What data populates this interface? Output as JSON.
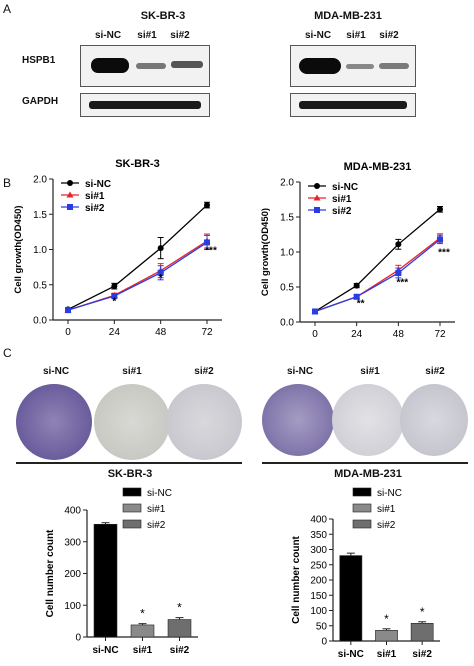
{
  "panels": {
    "a": "A",
    "b": "B",
    "c": "C"
  },
  "western_blot": {
    "blots": [
      {
        "cell_line": "SK-BR-3",
        "lanes": [
          "si-NC",
          "si#1",
          "si#2"
        ],
        "rows": [
          {
            "label": "HSPB1",
            "intensity": [
              1.0,
              0.25,
              0.35
            ]
          },
          {
            "label": "GAPDH",
            "intensity": [
              0.9,
              0.9,
              0.9
            ]
          }
        ]
      },
      {
        "cell_line": "MDA-MB-231",
        "lanes": [
          "si-NC",
          "si#1",
          "si#2"
        ],
        "rows": [
          {
            "label": "HSPB1",
            "intensity": [
              1.0,
              0.2,
              0.25
            ]
          },
          {
            "label": "GAPDH",
            "intensity": [
              0.9,
              0.9,
              0.9
            ]
          }
        ]
      }
    ]
  },
  "colony": {
    "groups": [
      {
        "cell_line": "SK-BR-3",
        "labels": [
          "si-NC",
          "si#1",
          "si#2"
        ],
        "density": [
          0.9,
          0.1,
          0.2
        ]
      },
      {
        "cell_line": "MDA-MB-231",
        "labels": [
          "si-NC",
          "si#1",
          "si#2"
        ],
        "density": [
          0.85,
          0.1,
          0.25
        ]
      }
    ]
  },
  "colors": {
    "si_nc": "#000000",
    "si1": "#e8242a",
    "si2": "#2a3de0",
    "bar_nc": "#000000",
    "bar_si1": "#8a8a8a",
    "bar_si2": "#6e6e6e",
    "stain": "#6a5b9a"
  },
  "chart_data": [
    {
      "type": "line",
      "title": "SK-BR-3",
      "xlabel": "",
      "ylabel": "Cell growth(OD450)",
      "x": [
        0,
        24,
        48,
        72
      ],
      "ylim": [
        0,
        2.0
      ],
      "yticks": [
        "0.0",
        "0.5",
        "1.0",
        "1.5",
        "2.0"
      ],
      "legend_position": "top-left",
      "series": [
        {
          "name": "si-NC",
          "values": [
            0.15,
            0.48,
            1.02,
            1.63
          ],
          "errors": [
            0.02,
            0.04,
            0.15,
            0.04
          ]
        },
        {
          "name": "si#1",
          "values": [
            0.14,
            0.35,
            0.7,
            1.12
          ],
          "errors": [
            0.02,
            0.03,
            0.1,
            0.1
          ]
        },
        {
          "name": "si#2",
          "values": [
            0.14,
            0.34,
            0.67,
            1.1
          ],
          "errors": [
            0.02,
            0.03,
            0.1,
            0.1
          ]
        }
      ],
      "annotations": [
        {
          "x": 24,
          "y": 0.22,
          "text": "*"
        },
        {
          "x": 48,
          "y": 0.55,
          "text": "*"
        },
        {
          "x": 72,
          "y": 0.94,
          "text": "***"
        }
      ]
    },
    {
      "type": "line",
      "title": "MDA-MB-231",
      "xlabel": "",
      "ylabel": "Cell growth(OD450)",
      "x": [
        0,
        24,
        48,
        72
      ],
      "ylim": [
        0,
        2.0
      ],
      "yticks": [
        "0.0",
        "0.5",
        "1.0",
        "1.5",
        "2.0"
      ],
      "legend_position": "top-left",
      "series": [
        {
          "name": "si-NC",
          "values": [
            0.15,
            0.52,
            1.11,
            1.61
          ],
          "errors": [
            0.02,
            0.03,
            0.07,
            0.04
          ]
        },
        {
          "name": "si#1",
          "values": [
            0.15,
            0.36,
            0.74,
            1.2
          ],
          "errors": [
            0.02,
            0.03,
            0.07,
            0.06
          ]
        },
        {
          "name": "si#2",
          "values": [
            0.15,
            0.36,
            0.7,
            1.18
          ],
          "errors": [
            0.02,
            0.03,
            0.07,
            0.06
          ]
        }
      ],
      "annotations": [
        {
          "x": 24,
          "y": 0.22,
          "text": "**"
        },
        {
          "x": 48,
          "y": 0.52,
          "text": "***"
        },
        {
          "x": 72,
          "y": 0.95,
          "text": "***"
        }
      ]
    },
    {
      "type": "bar",
      "title": "",
      "xlabel": "",
      "ylabel": "Cell number count",
      "categories": [
        "si-NC",
        "si#1",
        "si#2"
      ],
      "values": [
        355,
        38,
        55
      ],
      "errors": [
        5,
        4,
        6
      ],
      "ylim": [
        0,
        400
      ],
      "yticks": [
        "0",
        "100",
        "200",
        "300",
        "400"
      ],
      "legend": [
        "si-NC",
        "si#1",
        "si#2"
      ],
      "legend_position": "top-right",
      "annotations": [
        {
          "category": "si#1",
          "text": "*"
        },
        {
          "category": "si#2",
          "text": "*"
        }
      ]
    },
    {
      "type": "bar",
      "title": "",
      "xlabel": "",
      "ylabel": "Cell number count",
      "categories": [
        "si-NC",
        "si#1",
        "si#2"
      ],
      "values": [
        280,
        35,
        58
      ],
      "errors": [
        8,
        5,
        5
      ],
      "ylim": [
        0,
        400
      ],
      "yticks": [
        "0",
        "50",
        "100",
        "150",
        "200",
        "250",
        "300",
        "350",
        "400"
      ],
      "legend": [
        "si-NC",
        "si#1",
        "si#2"
      ],
      "legend_position": "top-right",
      "annotations": [
        {
          "category": "si#1",
          "text": "*"
        },
        {
          "category": "si#2",
          "text": "*"
        }
      ]
    }
  ]
}
